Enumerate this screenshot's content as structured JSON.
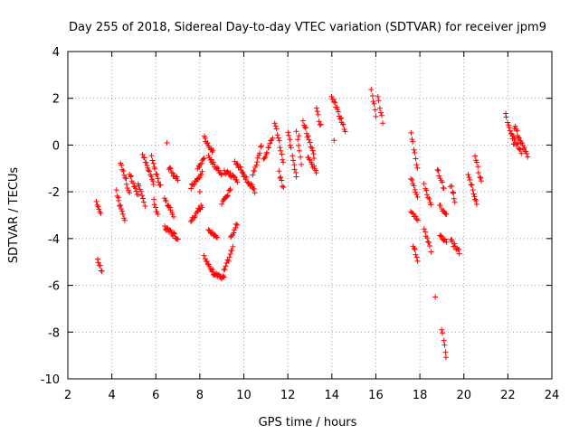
{
  "chart_data": {
    "type": "scatter",
    "title": "Day 255 of 2018, Sidereal Day-to-day VTEC variation (SDTVAR) for receiver jpm9",
    "xlabel": "GPS time / hours",
    "ylabel": "SDTVAR / TECUs",
    "xlim": [
      2,
      24
    ],
    "ylim": [
      -10,
      4
    ],
    "xticks": [
      "2",
      "4",
      "6",
      "8",
      "10",
      "12",
      "14",
      "16",
      "18",
      "20",
      "22",
      "24"
    ],
    "yticks": [
      "4",
      "2",
      "0",
      "-2",
      "-4",
      "-6",
      "-8",
      "-10"
    ],
    "grid": true,
    "marker": "+",
    "color": "#ff0000",
    "series": [
      {
        "name": "SDTVAR",
        "segments": [
          {
            "x": [
              3.3,
              3.5
            ],
            "y": [
              -2.4,
              -2.9
            ]
          },
          {
            "x": [
              3.35,
              3.55
            ],
            "y": [
              -4.9,
              -5.4
            ]
          },
          {
            "x": [
              4.2,
              4.6
            ],
            "y": [
              -2.0,
              -3.3
            ]
          },
          {
            "x": [
              4.4,
              4.8
            ],
            "y": [
              -0.8,
              -2.0
            ]
          },
          {
            "x": [
              4.8,
              5.2
            ],
            "y": [
              -1.2,
              -2.2
            ]
          },
          {
            "x": [
              5.2,
              5.5
            ],
            "y": [
              -1.6,
              -2.6
            ]
          },
          {
            "x": [
              5.4,
              5.9
            ],
            "y": [
              -0.4,
              -1.6
            ]
          },
          {
            "x": [
              5.8,
              6.2
            ],
            "y": [
              -0.5,
              -1.8
            ]
          },
          {
            "x": [
              5.9,
              6.1
            ],
            "y": [
              -2.4,
              -3.0
            ]
          },
          {
            "x": [
              6.4,
              6.8
            ],
            "y": [
              -2.3,
              -3.0
            ]
          },
          {
            "x": [
              6.4,
              7.0
            ],
            "y": [
              -3.5,
              -4.0
            ]
          },
          {
            "x": [
              6.6,
              7.0
            ],
            "y": [
              -1.0,
              -1.5
            ]
          },
          {
            "x": [
              7.6,
              8.1
            ],
            "y": [
              -1.8,
              -1.2
            ]
          },
          {
            "x": [
              7.6,
              8.1
            ],
            "y": [
              -3.2,
              -2.6
            ]
          },
          {
            "x": [
              7.9,
              8.2
            ],
            "y": [
              -1.0,
              -0.6
            ]
          },
          {
            "x": [
              8.2,
              8.6
            ],
            "y": [
              0.3,
              -0.3
            ]
          },
          {
            "x": [
              8.2,
              8.6
            ],
            "y": [
              -4.8,
              -5.4
            ]
          },
          {
            "x": [
              8.4,
              9.0
            ],
            "y": [
              -0.5,
              -1.3
            ]
          },
          {
            "x": [
              8.4,
              8.8
            ],
            "y": [
              -3.6,
              -4.0
            ]
          },
          {
            "x": [
              8.6,
              9.1
            ],
            "y": [
              -5.5,
              -5.7
            ]
          },
          {
            "x": [
              9.0,
              9.4
            ],
            "y": [
              -2.5,
              -1.9
            ]
          },
          {
            "x": [
              9.1,
              9.5
            ],
            "y": [
              -5.4,
              -4.4
            ]
          },
          {
            "x": [
              9.1,
              9.7
            ],
            "y": [
              -1.1,
              -1.5
            ]
          },
          {
            "x": [
              9.4,
              9.7
            ],
            "y": [
              -3.9,
              -3.4
            ]
          },
          {
            "x": [
              9.6,
              10.0
            ],
            "y": [
              -0.7,
              -1.2
            ]
          },
          {
            "x": [
              10.0,
              10.5
            ],
            "y": [
              -1.3,
              -2.0
            ]
          },
          {
            "x": [
              10.4,
              10.8
            ],
            "y": [
              -1.3,
              0.0
            ]
          },
          {
            "x": [
              10.9,
              11.3
            ],
            "y": [
              -0.6,
              0.3
            ]
          },
          {
            "x": [
              11.4,
              11.8
            ],
            "y": [
              1.0,
              -0.8
            ]
          },
          {
            "x": [
              11.6,
              11.8
            ],
            "y": [
              -1.2,
              -1.8
            ]
          },
          {
            "x": [
              12.0,
              12.4
            ],
            "y": [
              0.6,
              -1.4
            ]
          },
          {
            "x": [
              12.4,
              12.6
            ],
            "y": [
              0.5,
              -0.8
            ]
          },
          {
            "x": [
              12.7,
              13.2
            ],
            "y": [
              1.0,
              -0.5
            ]
          },
          {
            "x": [
              12.9,
              13.3
            ],
            "y": [
              -0.5,
              -1.2
            ]
          },
          {
            "x": [
              13.3,
              13.5
            ],
            "y": [
              1.5,
              0.8
            ]
          },
          {
            "x": [
              14.0,
              14.6
            ],
            "y": [
              2.1,
              0.6
            ]
          },
          {
            "x": [
              15.8,
              16.0
            ],
            "y": [
              2.4,
              1.2
            ]
          },
          {
            "x": [
              16.1,
              16.3
            ],
            "y": [
              2.1,
              1.0
            ]
          },
          {
            "x": [
              17.6,
              17.9
            ],
            "y": [
              0.5,
              -1.0
            ]
          },
          {
            "x": [
              17.6,
              17.9
            ],
            "y": [
              -1.4,
              -2.2
            ]
          },
          {
            "x": [
              17.6,
              17.9
            ],
            "y": [
              -2.8,
              -3.2
            ]
          },
          {
            "x": [
              17.7,
              17.9
            ],
            "y": [
              -4.3,
              -4.9
            ]
          },
          {
            "x": [
              18.2,
              18.5
            ],
            "y": [
              -1.7,
              -2.6
            ]
          },
          {
            "x": [
              18.2,
              18.5
            ],
            "y": [
              -3.6,
              -4.5
            ]
          },
          {
            "x": [
              18.8,
              19.1
            ],
            "y": [
              -1.0,
              -1.9
            ]
          },
          {
            "x": [
              18.9,
              19.2
            ],
            "y": [
              -2.6,
              -3.0
            ]
          },
          {
            "x": [
              18.9,
              19.2
            ],
            "y": [
              -3.9,
              -4.1
            ]
          },
          {
            "x": [
              19.0,
              19.2
            ],
            "y": [
              -7.9,
              -9.0
            ]
          },
          {
            "x": [
              19.4,
              19.6
            ],
            "y": [
              -1.7,
              -2.4
            ]
          },
          {
            "x": [
              19.4,
              19.8
            ],
            "y": [
              -4.1,
              -4.6
            ]
          },
          {
            "x": [
              20.2,
              20.6
            ],
            "y": [
              -1.2,
              -2.6
            ]
          },
          {
            "x": [
              20.5,
              20.8
            ],
            "y": [
              -0.5,
              -1.6
            ]
          },
          {
            "x": [
              21.9,
              22.3
            ],
            "y": [
              1.3,
              0.0
            ]
          },
          {
            "x": [
              22.3,
              22.9
            ],
            "y": [
              0.8,
              -0.5
            ]
          },
          {
            "x": [
              22.2,
              22.6
            ],
            "y": [
              0.4,
              -0.3
            ]
          }
        ],
        "points": [
          {
            "x": 6.5,
            "y": 0.1
          },
          {
            "x": 18.7,
            "y": -6.5
          },
          {
            "x": 14.1,
            "y": 0.2
          },
          {
            "x": 12.5,
            "y": 0.4
          },
          {
            "x": 8.0,
            "y": -2.0
          }
        ]
      }
    ]
  }
}
